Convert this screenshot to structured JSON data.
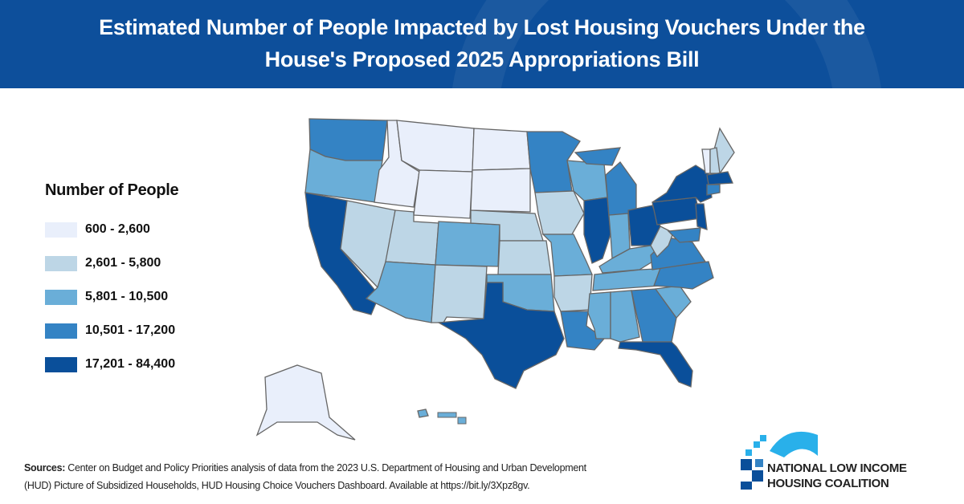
{
  "title": "Estimated Number of People Impacted by Lost Housing Vouchers Under the House's Proposed 2025 Appropriations Bill",
  "title_line1": "Estimated Number of People Impacted by Lost Housing Vouchers Under the",
  "title_line2": "House's Proposed 2025 Appropriations Bill",
  "legend": {
    "title": "Number of People",
    "items": [
      {
        "label": "600 - 2,600",
        "color": "#e9effb"
      },
      {
        "label": "2,601 - 5,800",
        "color": "#bdd6e6"
      },
      {
        "label": "5,801 - 10,500",
        "color": "#6aaed8"
      },
      {
        "label": "10,501 - 17,200",
        "color": "#3483c4"
      },
      {
        "label": "17,201 - 84,400",
        "color": "#0a4f9a"
      }
    ]
  },
  "states": {
    "WA": 3,
    "OR": 2,
    "CA": 4,
    "NV": 1,
    "ID": 0,
    "MT": 0,
    "WY": 0,
    "UT": 1,
    "AZ": 2,
    "CO": 2,
    "NM": 1,
    "ND": 0,
    "SD": 0,
    "NE": 1,
    "KS": 1,
    "OK": 2,
    "TX": 4,
    "MN": 3,
    "IA": 1,
    "MO": 2,
    "AR": 1,
    "LA": 3,
    "WI": 2,
    "IL": 4,
    "MI": 3,
    "IN": 2,
    "OH": 4,
    "KY": 2,
    "TN": 2,
    "MS": 2,
    "AL": 2,
    "GA": 3,
    "FL": 4,
    "SC": 2,
    "NC": 3,
    "VA": 3,
    "WV": 1,
    "PA": 4,
    "NY": 4,
    "NJ": 4,
    "MD": 3,
    "ME": 1,
    "VT": 0,
    "NH": 1,
    "MA": 4,
    "CT": 3,
    "AK": 0,
    "HI": 2
  },
  "sources_label": "Sources:",
  "sources_line1": "Center on Budget and Policy Priorities analysis of data from the 2023 U.S. Department of Housing and Urban Development",
  "sources_line2": "(HUD) Picture of Subsidized Households, HUD Housing Choice Vouchers Dashboard. Available at https://bit.ly/3Xpz8gv.",
  "logo": {
    "line1": "NATIONAL LOW INCOME",
    "line2": "HOUSING COALITION"
  },
  "colors": {
    "header": "#0d4f9b",
    "logo_light": "#29b0ea",
    "logo_dark": "#0a4f9a"
  }
}
